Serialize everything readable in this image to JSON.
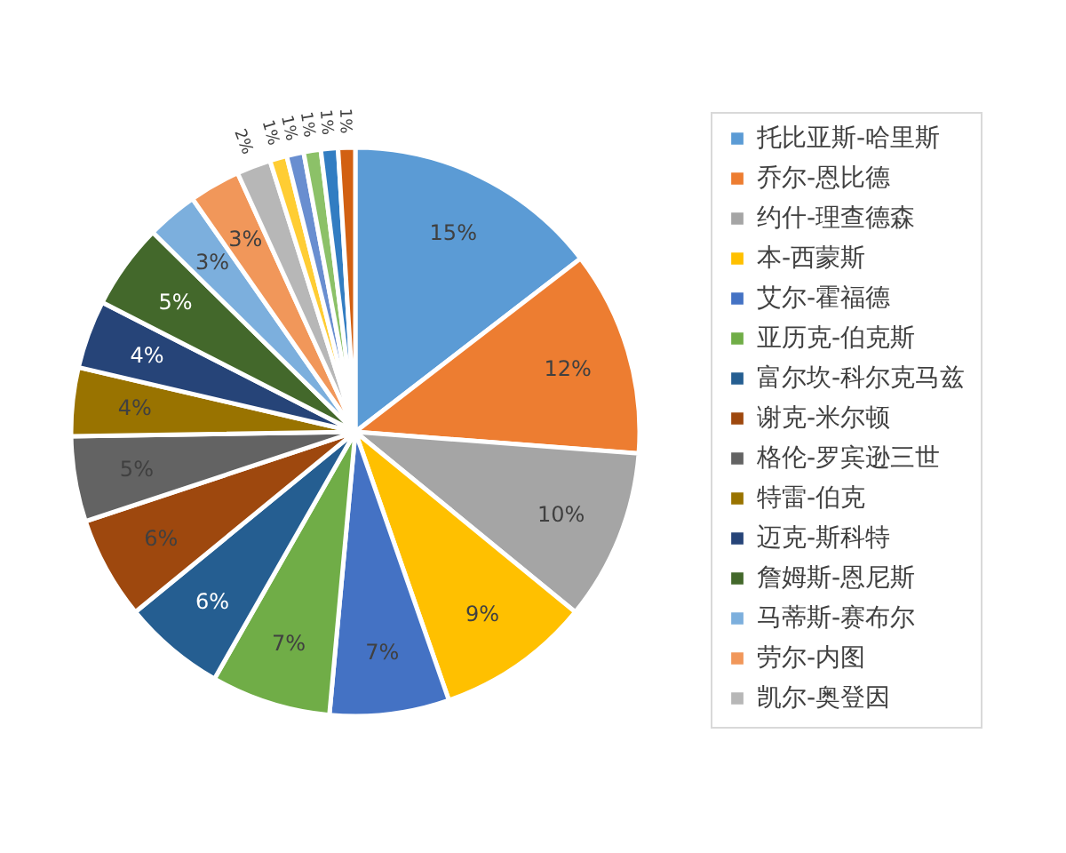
{
  "chart_data": {
    "type": "pie",
    "categories": [
      "托比亚斯-哈里斯",
      "乔尔-恩比德",
      "约什-理查德森",
      "本-西蒙斯",
      "艾尔-霍福德",
      "亚历克-伯克斯",
      "富尔坎-科尔克马兹",
      "谢克-米尔顿",
      "格伦-罗宾逊三世",
      "特雷-伯克",
      "迈克-斯科特",
      "詹姆斯-恩尼斯",
      "马蒂斯-赛布尔",
      "劳尔-内图",
      "凯尔-奥登因",
      null,
      null,
      null,
      null,
      null
    ],
    "values": [
      15,
      12,
      10,
      9,
      7,
      7,
      6,
      6,
      5,
      4,
      4,
      5,
      3,
      3,
      2,
      1,
      1,
      1,
      1,
      1
    ],
    "value_labels": [
      "15%",
      "12%",
      "10%",
      "9%",
      "7%",
      "7%",
      "6%",
      "6%",
      "5%",
      "4%",
      "4%",
      "5%",
      "3%",
      "3%",
      "2%",
      "1%",
      "1%",
      "1%",
      "1%",
      "1%"
    ],
    "colors": [
      "#5b9bd5",
      "#ed7d31",
      "#a5a5a5",
      "#ffc000",
      "#4472c4",
      "#70ad47",
      "#255e91",
      "#9e480e",
      "#636363",
      "#997300",
      "#264478",
      "#43682b",
      "#7cafdd",
      "#f1975a",
      "#b7b7b7",
      "#ffcd33",
      "#698ed0",
      "#8cc168",
      "#327dc2",
      "#d26012"
    ],
    "legend": "right"
  }
}
